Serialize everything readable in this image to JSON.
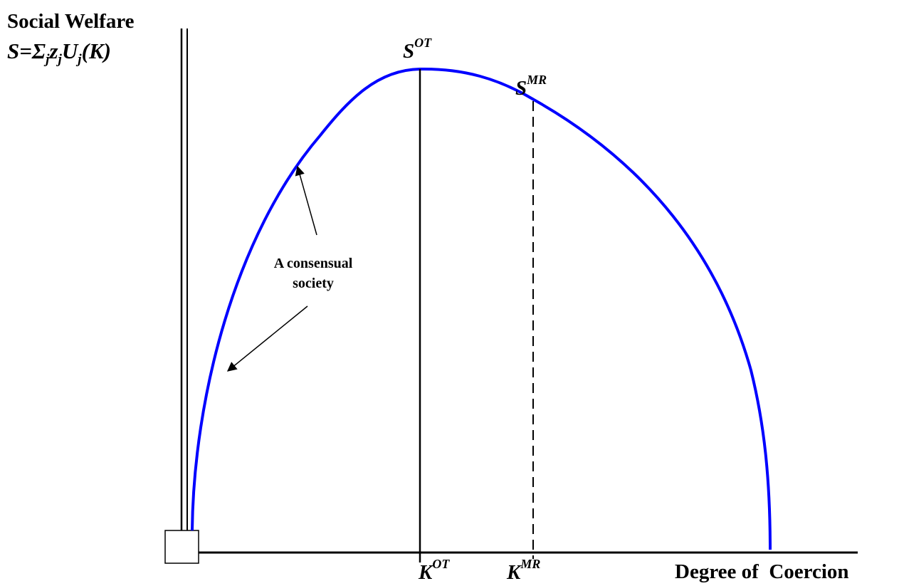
{
  "y_axis": {
    "title": "Social Welfare",
    "formula": {
      "lhs": "S",
      "eq": "=",
      "sigma": "Σ",
      "sigma_sub": "j",
      "z": "z",
      "z_sub": "j",
      "u": "U",
      "u_sub": "j",
      "arg": "(K)"
    }
  },
  "x_axis": {
    "title": "Degree of  Coercion"
  },
  "curve_label": {
    "line1": "A consensual",
    "line2": "society"
  },
  "markers": {
    "s_ot": {
      "base": "S",
      "sup": "OT"
    },
    "s_mr": {
      "base": "S",
      "sup": "MR"
    },
    "k_ot": {
      "base": "K",
      "sup": "OT"
    },
    "k_mr": {
      "base": "K",
      "sup": "MR"
    }
  },
  "colors": {
    "curve": "#0000ff",
    "axes": "#000000"
  }
}
